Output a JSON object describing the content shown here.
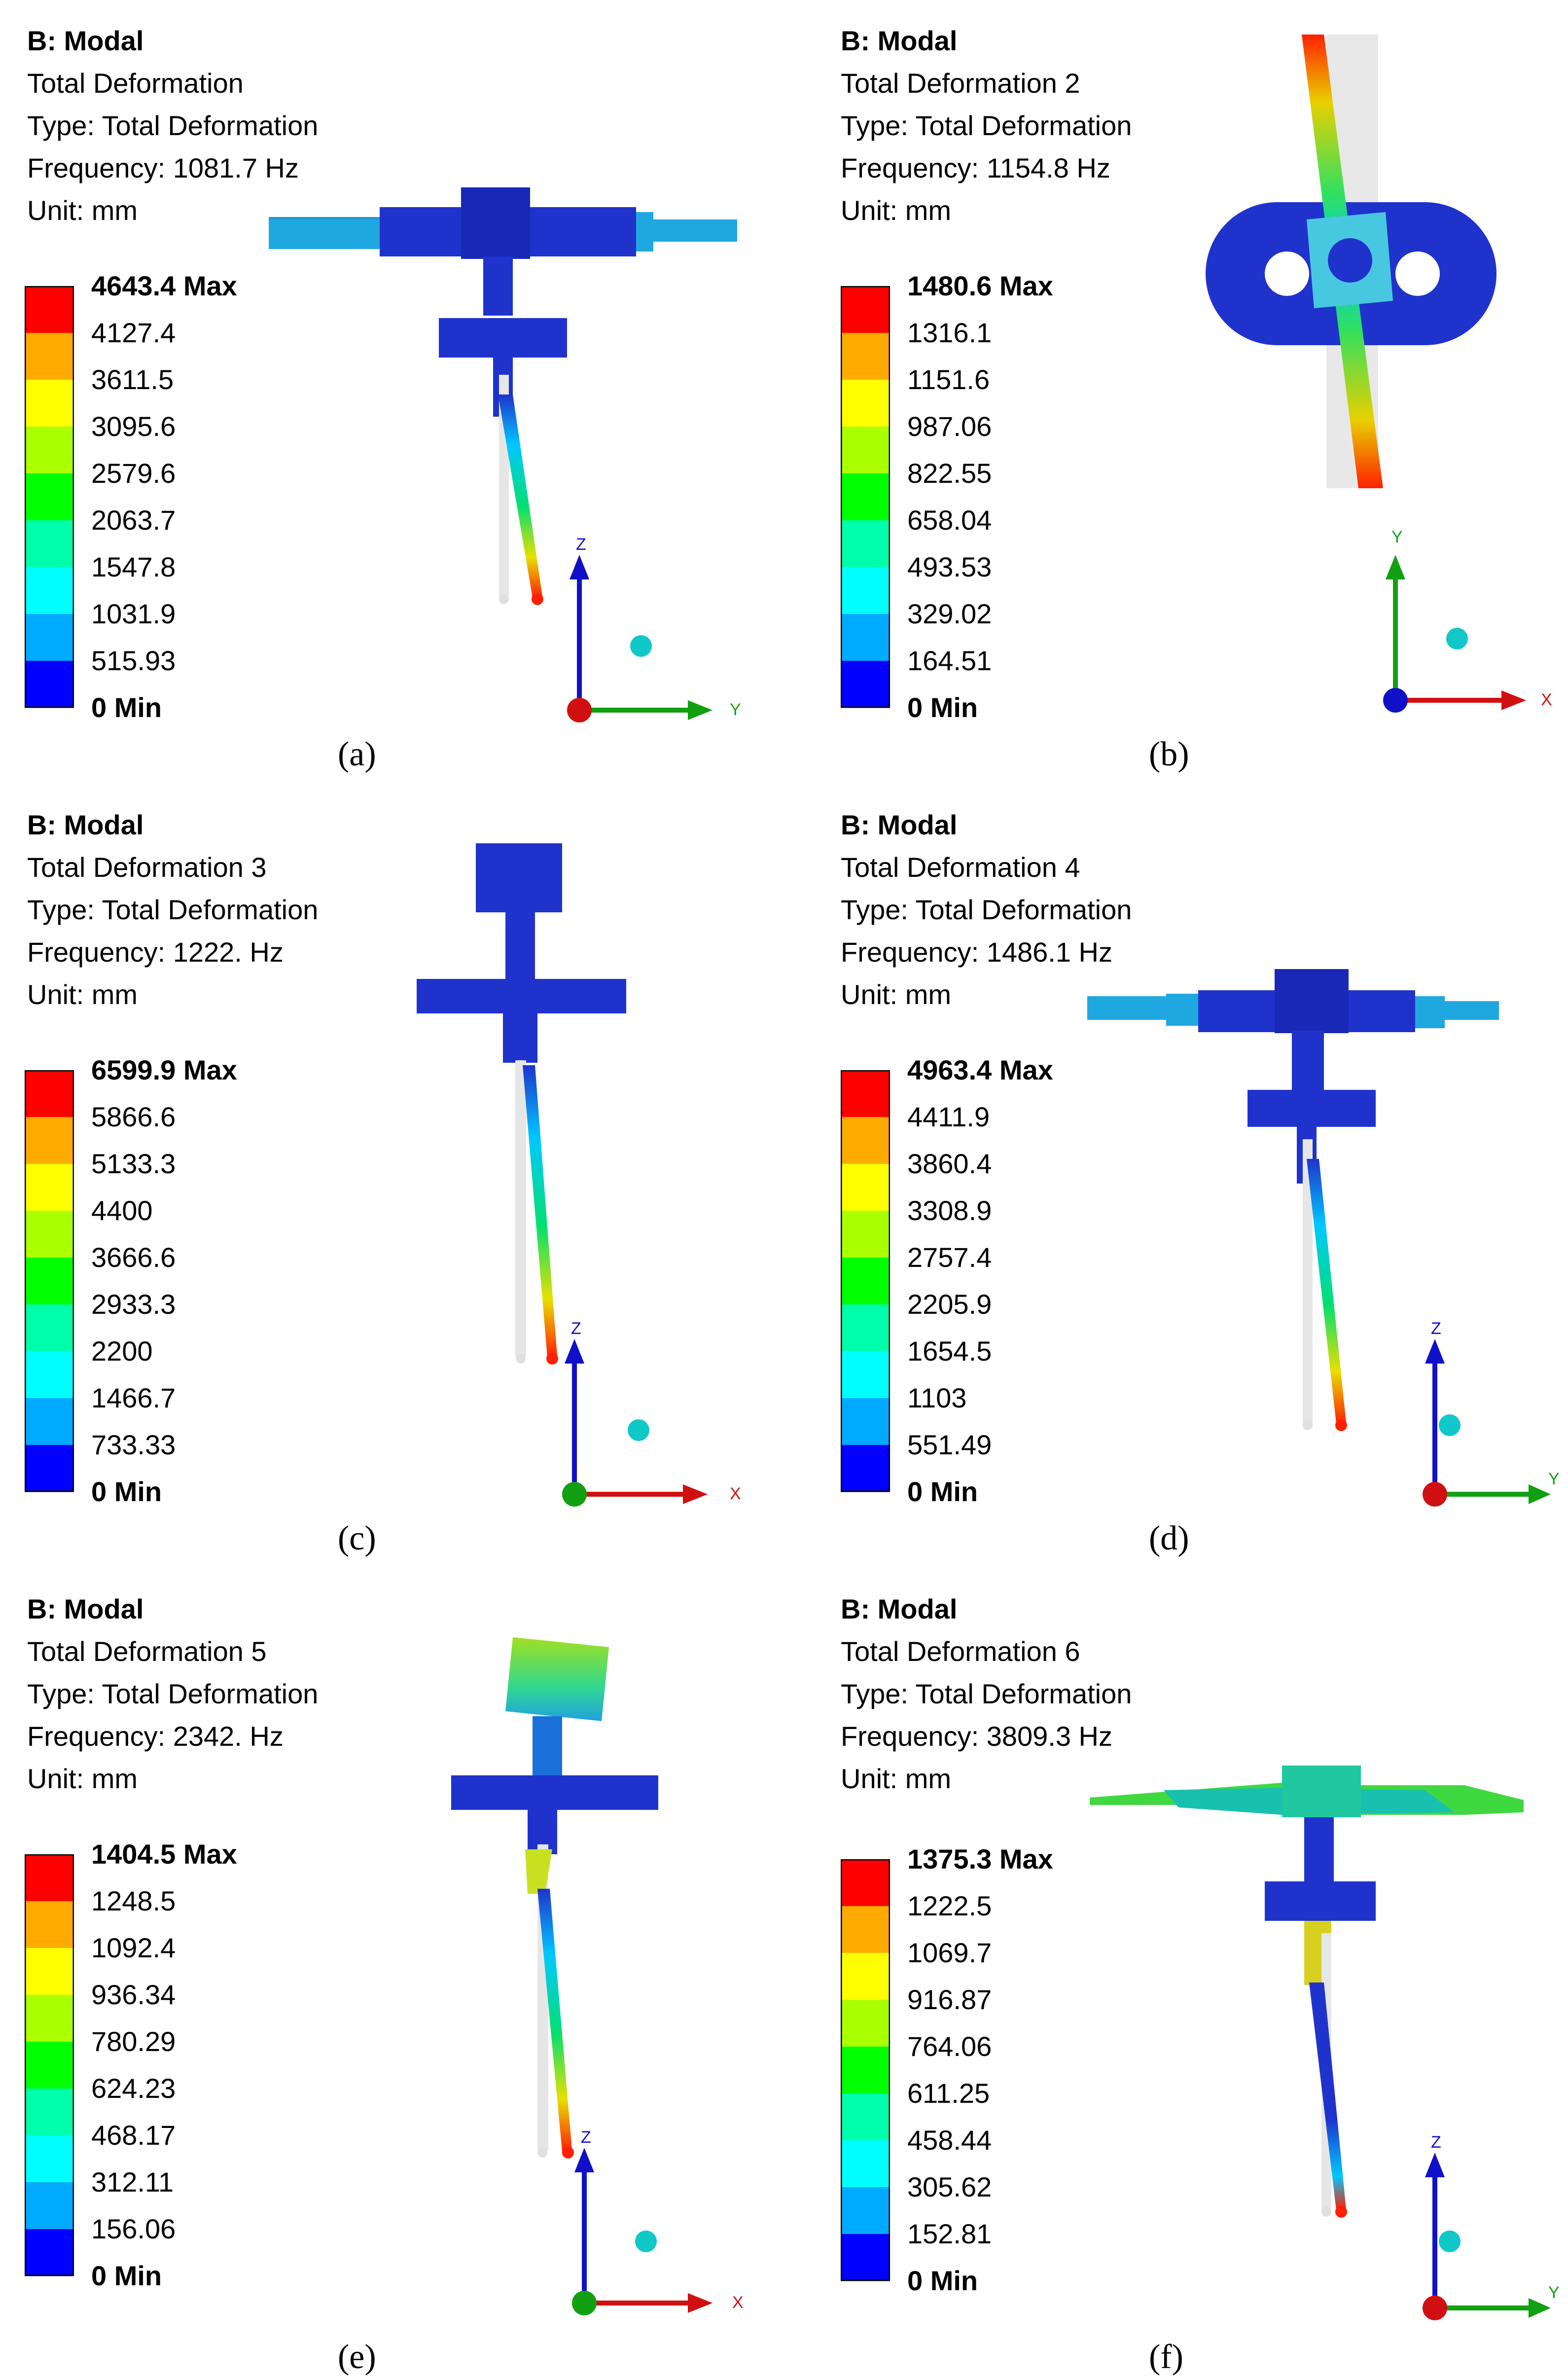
{
  "panels": [
    {
      "header": "B: Modal",
      "title": "Total Deformation",
      "type": "Type: Total Deformation",
      "frequency": "Frequency: 1081.7 Hz",
      "unit": "Unit: mm",
      "legend": [
        "4643.4 Max",
        "4127.4",
        "3611.5",
        "3095.6",
        "2579.6",
        "2063.7",
        "1547.8",
        "1031.9",
        "515.93",
        "0 Min"
      ],
      "axes": {
        "vertical": "Z",
        "horizontal": "Y"
      },
      "caption": "(a)"
    },
    {
      "header": "B: Modal",
      "title": "Total Deformation 2",
      "type": "Type: Total Deformation",
      "frequency": "Frequency: 1154.8 Hz",
      "unit": "Unit: mm",
      "legend": [
        "1480.6 Max",
        "1316.1",
        "1151.6",
        "987.06",
        "822.55",
        "658.04",
        "493.53",
        "329.02",
        "164.51",
        "0 Min"
      ],
      "axes": {
        "vertical": "Y",
        "horizontal": "X"
      },
      "caption": "(b)"
    },
    {
      "header": "B: Modal",
      "title": "Total Deformation 3",
      "type": "Type: Total Deformation",
      "frequency": "Frequency: 1222. Hz",
      "unit": "Unit: mm",
      "legend": [
        "6599.9 Max",
        "5866.6",
        "5133.3",
        "4400",
        "3666.6",
        "2933.3",
        "2200",
        "1466.7",
        "733.33",
        "0 Min"
      ],
      "axes": {
        "vertical": "Z",
        "horizontal": "X"
      },
      "caption": "(c)"
    },
    {
      "header": "B: Modal",
      "title": "Total Deformation 4",
      "type": "Type: Total Deformation",
      "frequency": "Frequency: 1486.1 Hz",
      "unit": "Unit: mm",
      "legend": [
        "4963.4 Max",
        "4411.9",
        "3860.4",
        "3308.9",
        "2757.4",
        "2205.9",
        "1654.5",
        "1103",
        "551.49",
        "0 Min"
      ],
      "axes": {
        "vertical": "Z",
        "horizontal": "Y"
      },
      "caption": "(d)"
    },
    {
      "header": "B: Modal",
      "title": "Total Deformation 5",
      "type": "Type: Total Deformation",
      "frequency": "Frequency: 2342. Hz",
      "unit": "Unit: mm",
      "legend": [
        "1404.5 Max",
        "1248.5",
        "1092.4",
        "936.34",
        "780.29",
        "624.23",
        "468.17",
        "312.11",
        "156.06",
        "0 Min"
      ],
      "axes": {
        "vertical": "Z",
        "horizontal": "X"
      },
      "caption": "(e)"
    },
    {
      "header": "B: Modal",
      "title": "Total Deformation 6",
      "type": "Type: Total Deformation",
      "frequency": "Frequency: 3809.3 Hz",
      "unit": "Unit: mm",
      "legend": [
        "1375.3 Max",
        "1222.5",
        "1069.7",
        "916.87",
        "764.06",
        "611.25",
        "458.44",
        "305.62",
        "152.81",
        "0 Min"
      ],
      "axes": {
        "vertical": "Z",
        "horizontal": "Y"
      },
      "caption": "(f)"
    }
  ],
  "colors": {
    "scale": [
      "#ff0000",
      "#ffaa00",
      "#ffff00",
      "#aaff00",
      "#00ff00",
      "#00ffaa",
      "#00ffff",
      "#00aaff",
      "#0000ff"
    ],
    "model_base": "#1f33cc",
    "axis_z": "#1010c8",
    "axis_y": "#11a011",
    "axis_x": "#d01010"
  }
}
